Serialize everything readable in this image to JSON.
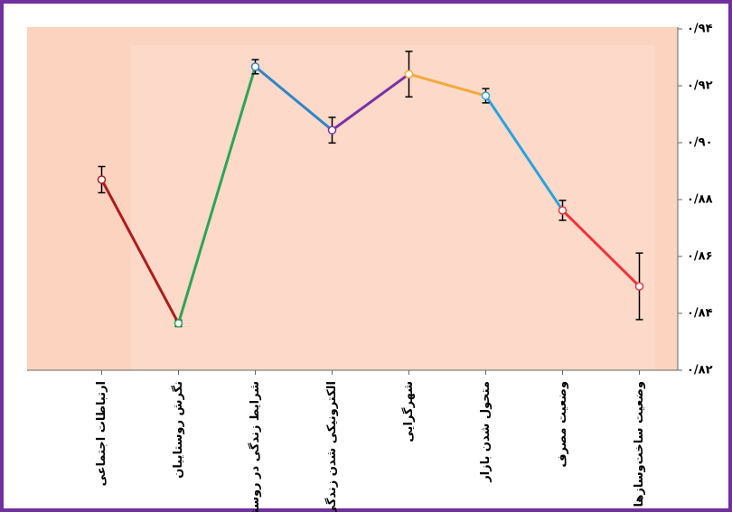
{
  "chart_data": {
    "type": "line",
    "categories": [
      "ارتباطات اجتماعی",
      "نگرش روستاییان",
      "شرایط زندگی در روستا",
      "الکترونیکی شدن زندگی",
      "شهرگرایی",
      "متحول شدن بازار",
      "وضعیت مصرف",
      "وضعیت ساخت‌وسازها"
    ],
    "values": [
      0.887,
      0.8365,
      0.9267,
      0.9044,
      0.9241,
      0.9165,
      0.8762,
      0.8495
    ],
    "errors": [
      0.0046,
      0.0011,
      0.0025,
      0.0045,
      0.008,
      0.0025,
      0.0035,
      0.0117
    ],
    "segment_colors": [
      "#b01b1b",
      "#2aa55a",
      "#2f84c8",
      "#7b2fa8",
      "#f2a93b",
      "#27a4e0",
      "#f2323a"
    ],
    "point_colors": [
      "#b01b1b",
      "#2aa55a",
      "#2f84c8",
      "#7b2fa8",
      "#f2a93b",
      "#27a4e0",
      "#f2323a",
      "#f2323a"
    ],
    "ylim": [
      0.82,
      0.94
    ],
    "yticks": [
      {
        "value": 0.82,
        "label": "۰/۸۲"
      },
      {
        "value": 0.84,
        "label": "۰/۸۴"
      },
      {
        "value": 0.86,
        "label": "۰/۸۶"
      },
      {
        "value": 0.88,
        "label": "۰/۸۸"
      },
      {
        "value": 0.9,
        "label": "۰/۹۰"
      },
      {
        "value": 0.92,
        "label": "۰/۹۲"
      },
      {
        "value": 0.94,
        "label": "۰/۹۴"
      }
    ],
    "y_axis_side": "right"
  }
}
